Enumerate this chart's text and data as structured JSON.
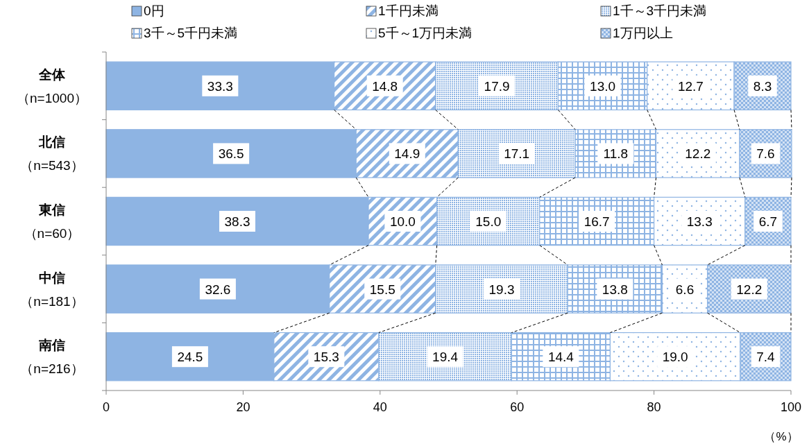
{
  "chart_data": {
    "type": "bar",
    "orientation": "horizontal",
    "stacked": true,
    "categories": [
      "全体（n=1000）",
      "北信（n=543）",
      "東信（n=60）",
      "中信（n=181）",
      "南信（n=216）"
    ],
    "series": [
      {
        "name": "0円",
        "color": "#8eb4e3",
        "values": [
          33.3,
          36.5,
          38.3,
          32.6,
          24.5
        ],
        "value_labels": [
          "33.3",
          "36.5",
          "38.3",
          "32.6",
          "24.5"
        ]
      },
      {
        "name": "1千円未満",
        "color": "#8eb4e3",
        "values": [
          14.8,
          14.9,
          10.0,
          15.5,
          15.3
        ],
        "value_labels": [
          "14.8",
          "14.9",
          "10.0",
          "15.5",
          "15.3"
        ]
      },
      {
        "name": "1千～3千円未満",
        "color": "#8eb4e3",
        "values": [
          17.9,
          17.1,
          15.0,
          19.3,
          19.4
        ],
        "value_labels": [
          "17.9",
          "17.1",
          "15.0",
          "19.3",
          "19.4"
        ]
      },
      {
        "name": "3千～5千円未満",
        "color": "#8eb4e3",
        "values": [
          13.0,
          11.8,
          16.7,
          13.8,
          14.4
        ],
        "value_labels": [
          "13.0",
          "11.8",
          "16.7",
          "13.8",
          "14.4"
        ]
      },
      {
        "name": "5千～1万円未満",
        "color": "#8eb4e3",
        "values": [
          12.7,
          12.2,
          13.3,
          6.6,
          19.0
        ],
        "value_labels": [
          "12.7",
          "12.2",
          "13.3",
          "6.6",
          "19.0"
        ]
      },
      {
        "name": "1万円以上",
        "color": "#8eb4e3",
        "values": [
          8.3,
          7.6,
          6.7,
          12.2,
          7.4
        ],
        "value_labels": [
          "8.3",
          "7.6",
          "6.7",
          "12.2",
          "7.4"
        ]
      }
    ],
    "xlim": [
      0,
      100
    ],
    "xticks": [
      0,
      20,
      40,
      60,
      80,
      100
    ],
    "xlabel": "（%）",
    "legend": "top",
    "grid": false
  }
}
